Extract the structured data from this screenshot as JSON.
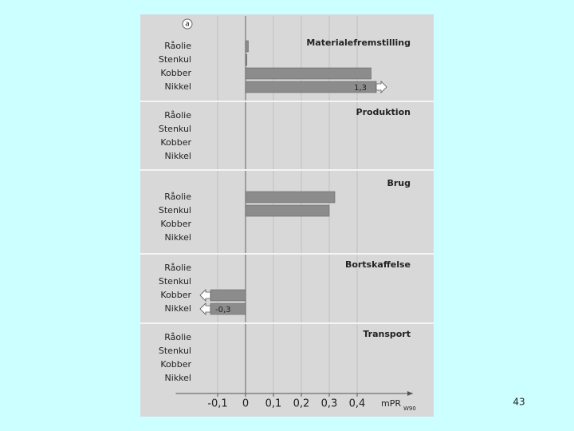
{
  "chart_data": {
    "type": "bar",
    "orientation": "horizontal",
    "marker": "a",
    "panels": [
      {
        "title": "Materialefremstilling",
        "categories": [
          "Råolie",
          "Stenkul",
          "Kobber",
          "Nikkel"
        ],
        "values": [
          0.01,
          0.005,
          0.45,
          1.3
        ],
        "value_labels": [
          null,
          null,
          null,
          "1,3"
        ]
      },
      {
        "title": "Produktion",
        "categories": [
          "Råolie",
          "Stenkul",
          "Kobber",
          "Nikkel"
        ],
        "values": [
          0,
          0,
          0,
          0
        ]
      },
      {
        "title": "Brug",
        "categories": [
          "Råolie",
          "Stenkul",
          "Kobber",
          "Nikkel"
        ],
        "values": [
          0.32,
          0.3,
          0,
          0
        ]
      },
      {
        "title": "Bortskaffelse",
        "categories": [
          "Råolie",
          "Stenkul",
          "Kobber",
          "Nikkel"
        ],
        "values": [
          0,
          0,
          -0.13,
          -0.3
        ],
        "value_labels": [
          null,
          null,
          null,
          "-0,3"
        ]
      },
      {
        "title": "Transport",
        "categories": [
          "Råolie",
          "Stenkul",
          "Kobber",
          "Nikkel"
        ],
        "values": [
          0,
          0,
          0,
          0
        ]
      }
    ],
    "xlim": [
      -0.25,
      0.6
    ],
    "xticks": [
      {
        "value": -0.1,
        "label": "-0,1"
      },
      0,
      {
        "value": 0.1,
        "label": "0,1"
      },
      {
        "value": 0.2,
        "label": "0,2"
      },
      {
        "value": 0.3,
        "label": "0,3"
      },
      {
        "value": 0.4,
        "label": "0,4"
      }
    ],
    "x_label": "mPR",
    "x_label_sub": "W90",
    "color": "#8c8c8c",
    "grid": true
  },
  "page_number": "43"
}
